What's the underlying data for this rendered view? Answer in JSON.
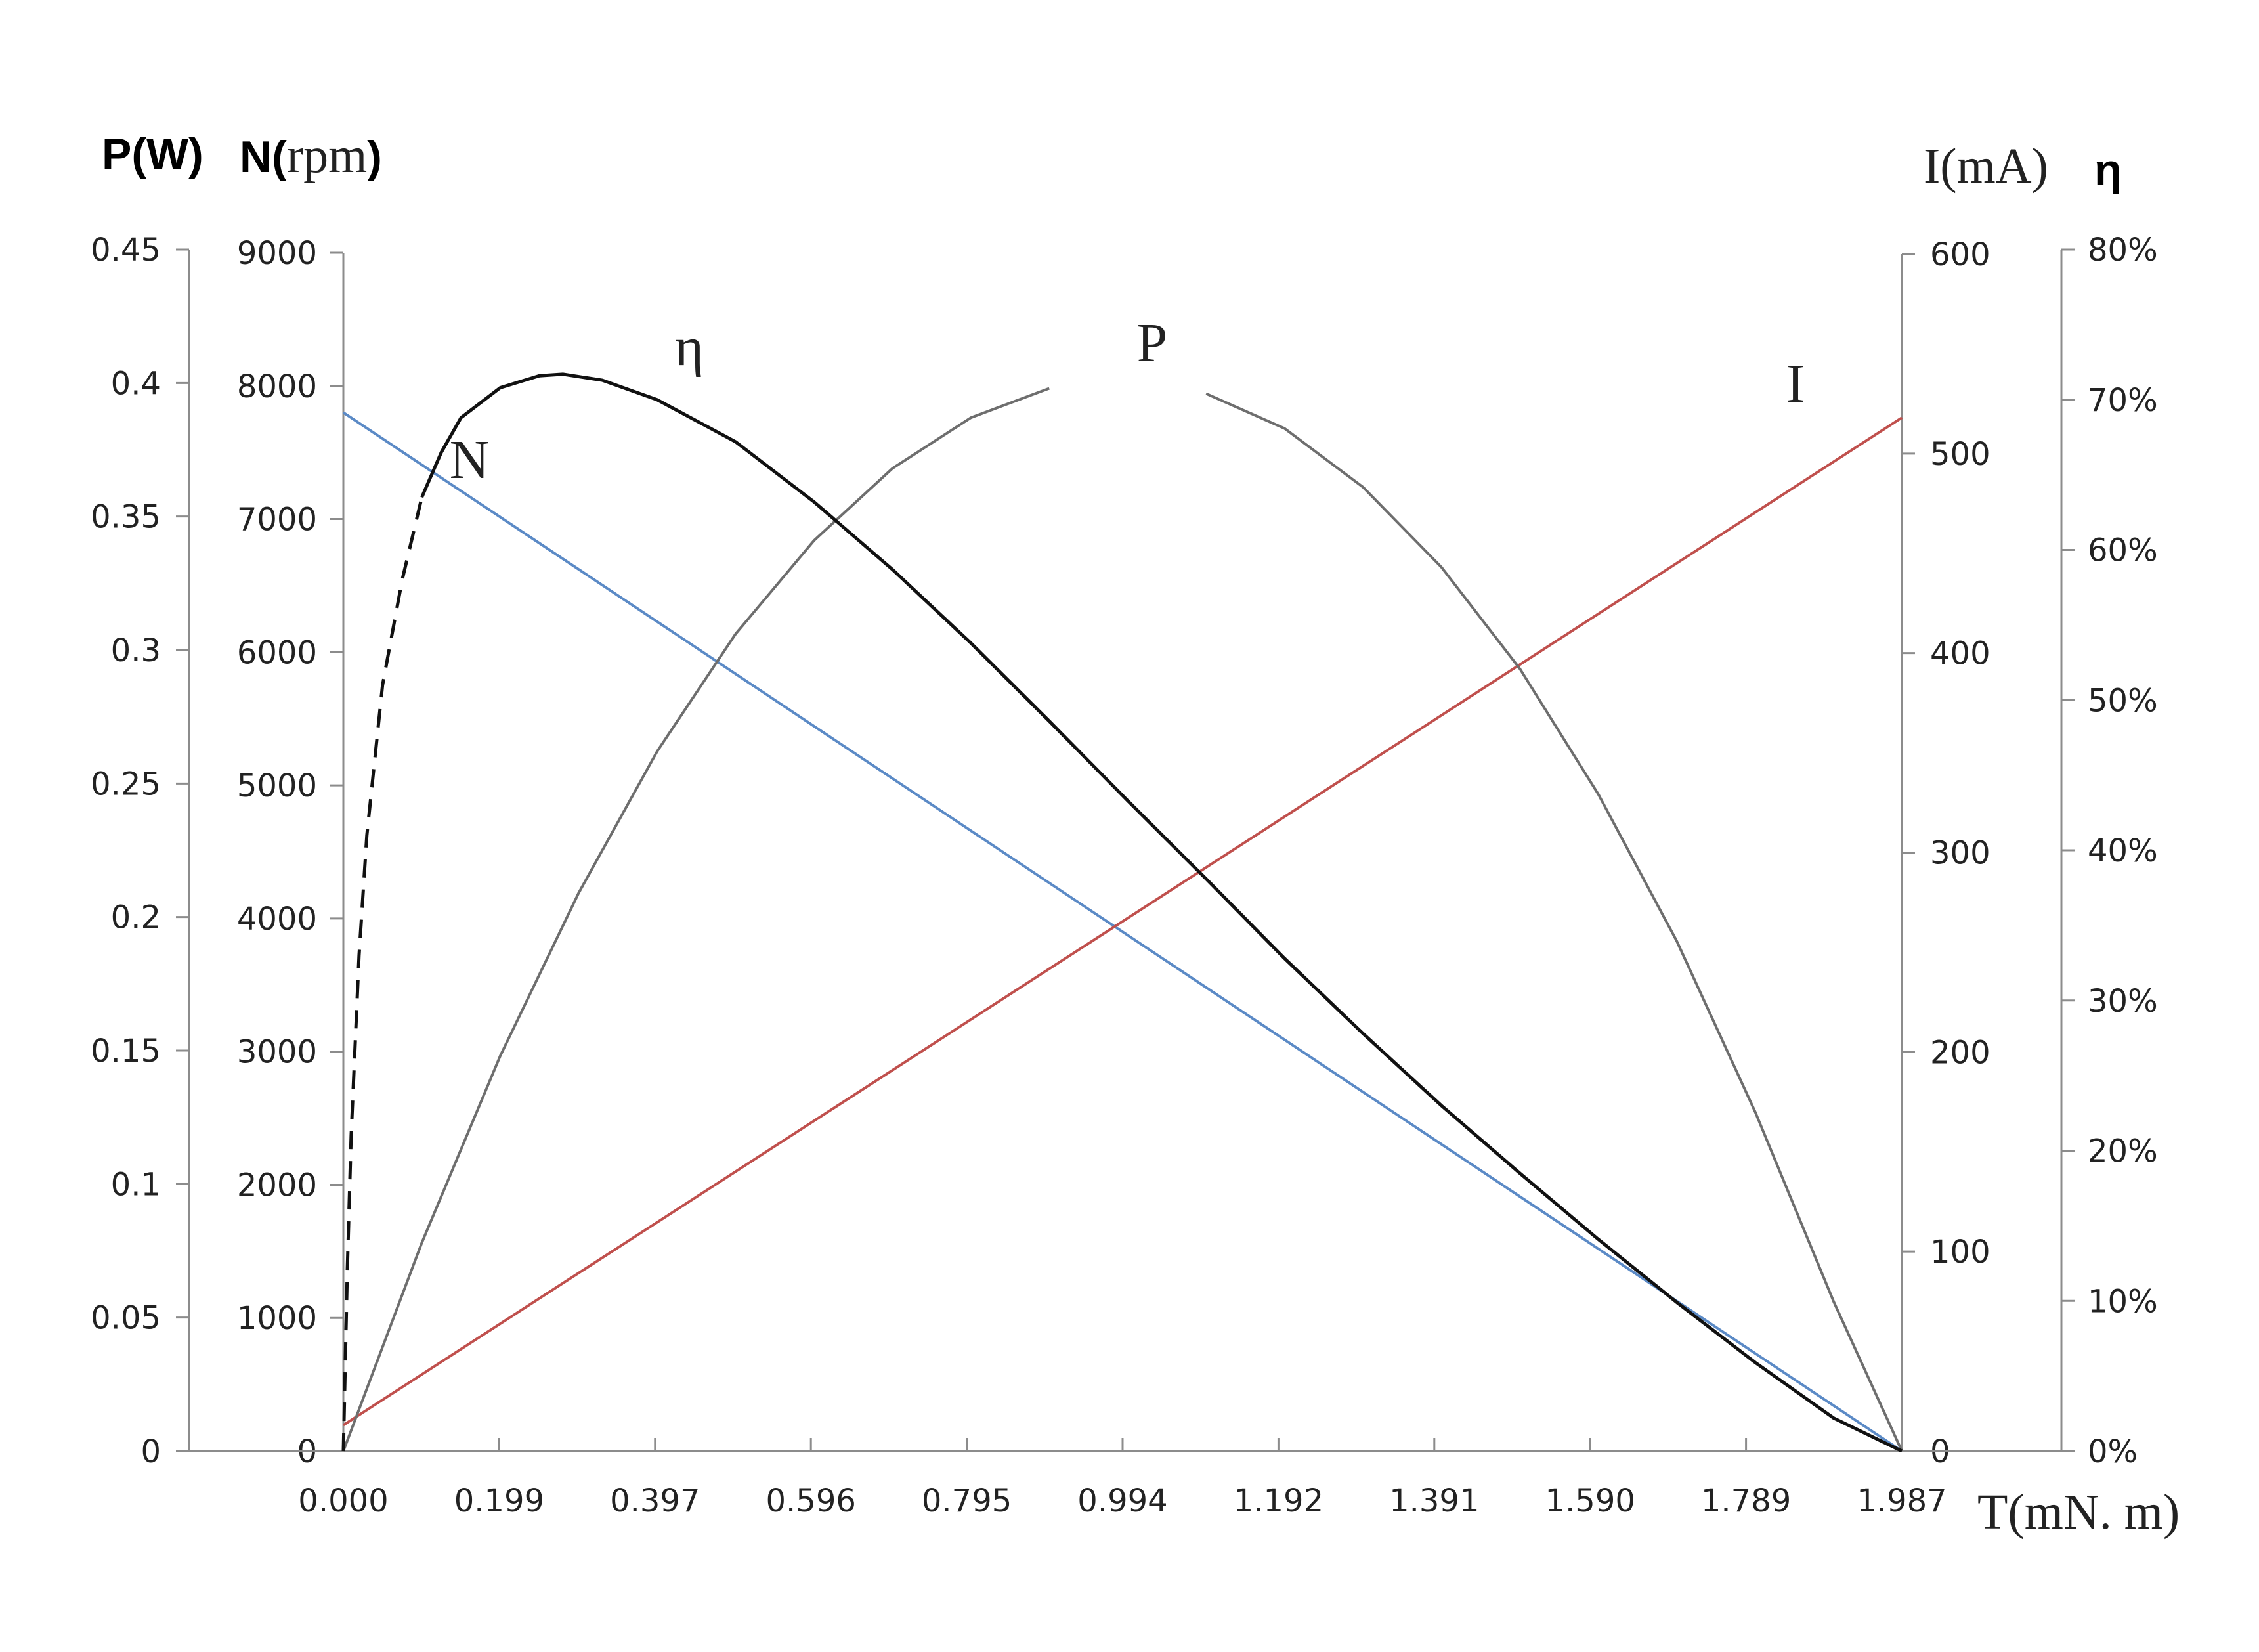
{
  "chart_data": {
    "type": "line",
    "x": {
      "label": "T(mN. m)",
      "range": [
        0,
        1.987
      ],
      "ticks": [
        "0.000",
        "0.199",
        "0.397",
        "0.596",
        "0.795",
        "0.994",
        "1.192",
        "1.391",
        "1.590",
        "1.789",
        "1.987"
      ]
    },
    "axes": {
      "power": {
        "label": "P(W)",
        "range": [
          0,
          0.45
        ],
        "ticks": [
          "0",
          "0.05",
          "0.1",
          "0.15",
          "0.2",
          "0.25",
          "0.3",
          "0.35",
          "0.4",
          "0.45"
        ]
      },
      "speed": {
        "label_prefix": "N(",
        "label_unit": "rpm",
        "label_suffix": ")",
        "range": [
          0,
          9000
        ],
        "ticks": [
          "0",
          "1000",
          "2000",
          "3000",
          "4000",
          "5000",
          "6000",
          "7000",
          "8000",
          "9000"
        ]
      },
      "current": {
        "label": "I(mA)",
        "range": [
          0,
          600
        ],
        "ticks": [
          "0",
          "100",
          "200",
          "300",
          "400",
          "500",
          "600"
        ]
      },
      "efficiency": {
        "label": "η",
        "range": [
          0,
          80
        ],
        "unit": "%",
        "ticks": [
          "0%",
          "10%",
          "20%",
          "30%",
          "40%",
          "50%",
          "60%",
          "70%",
          "80%"
        ]
      }
    },
    "series": [
      {
        "name": "N",
        "axis": "speed",
        "color": "#5b8ac6",
        "points": [
          [
            0,
            7800
          ],
          [
            1.987,
            0
          ]
        ]
      },
      {
        "name": "I",
        "axis": "current",
        "color": "#c0504d",
        "points": [
          [
            0,
            13
          ],
          [
            1.987,
            518
          ]
        ]
      },
      {
        "name": "P",
        "axis": "power",
        "color": "#6e6e6e",
        "label_gap_x": [
          0.98,
          1.1
        ],
        "points": [
          [
            0,
            0
          ],
          [
            0.1,
            0.078
          ],
          [
            0.2,
            0.148
          ],
          [
            0.3,
            0.209
          ],
          [
            0.4,
            0.262
          ],
          [
            0.5,
            0.306
          ],
          [
            0.6,
            0.341
          ],
          [
            0.7,
            0.368
          ],
          [
            0.8,
            0.387
          ],
          [
            0.9,
            0.398
          ],
          [
            0.994,
            0.4
          ],
          [
            1.1,
            0.396
          ],
          [
            1.2,
            0.383
          ],
          [
            1.3,
            0.361
          ],
          [
            1.4,
            0.331
          ],
          [
            1.5,
            0.293
          ],
          [
            1.6,
            0.246
          ],
          [
            1.7,
            0.191
          ],
          [
            1.8,
            0.127
          ],
          [
            1.9,
            0.056
          ],
          [
            1.987,
            0
          ]
        ]
      },
      {
        "name": "η",
        "axis": "efficiency",
        "color": "#111111",
        "dashed_below_x": 0.1,
        "points": [
          [
            0,
            0
          ],
          [
            0.005,
            12
          ],
          [
            0.01,
            21
          ],
          [
            0.02,
            33
          ],
          [
            0.03,
            41
          ],
          [
            0.05,
            51
          ],
          [
            0.075,
            58
          ],
          [
            0.1,
            63.5
          ],
          [
            0.125,
            66.5
          ],
          [
            0.15,
            68.8
          ],
          [
            0.2,
            70.8
          ],
          [
            0.25,
            71.6
          ],
          [
            0.28,
            71.7
          ],
          [
            0.33,
            71.3
          ],
          [
            0.4,
            70
          ],
          [
            0.5,
            67.2
          ],
          [
            0.6,
            63.2
          ],
          [
            0.7,
            58.7
          ],
          [
            0.8,
            53.8
          ],
          [
            0.9,
            48.6
          ],
          [
            1.0,
            43.3
          ],
          [
            1.1,
            38.1
          ],
          [
            1.2,
            32.8
          ],
          [
            1.3,
            27.8
          ],
          [
            1.4,
            23
          ],
          [
            1.5,
            18.5
          ],
          [
            1.6,
            14.1
          ],
          [
            1.7,
            9.9
          ],
          [
            1.8,
            5.9
          ],
          [
            1.9,
            2.2
          ],
          [
            1.987,
            0
          ]
        ]
      }
    ],
    "grid": false,
    "legend": "none"
  }
}
